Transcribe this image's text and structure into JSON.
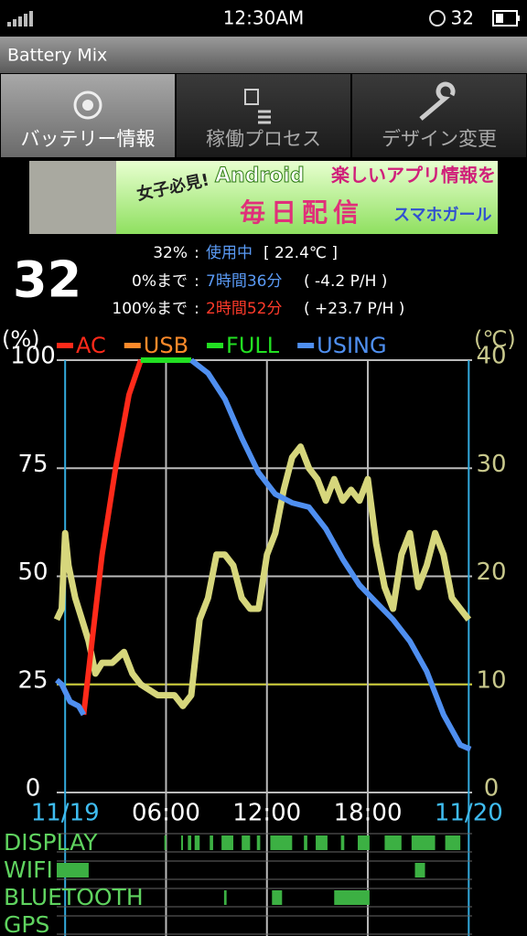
{
  "status_bar": {
    "time": "12:30AM",
    "battery": "32"
  },
  "app_bar": {
    "title": "Battery Mix"
  },
  "tabs": [
    {
      "label": "バッテリー情報",
      "selected": true
    },
    {
      "label": "稼働プロセス",
      "selected": false
    },
    {
      "label": "デザイン変更",
      "selected": false
    }
  ],
  "banner": {
    "texts": [
      "女子必見!",
      "Android",
      "楽しいアプリ情報を",
      "毎日配信",
      "スマホガール"
    ]
  },
  "summary": {
    "level": "32",
    "separator": ":",
    "state_label": "32%",
    "state": "使用中",
    "temperature": "[ 22.4℃ ]",
    "to_empty": {
      "label": "0%まで",
      "time": "7時間36分",
      "rate": "( -4.2 P/H )"
    },
    "to_full": {
      "label": "100%まで",
      "time": "2時間52分",
      "rate": "( +23.7 P/H )"
    }
  },
  "chart_data": {
    "type": "line",
    "y_label": "(%)",
    "y2_label": "(℃)",
    "xlim": [
      -0.5,
      24.2
    ],
    "xticks": [
      {
        "value": 0,
        "label": "11/19"
      },
      {
        "value": 6,
        "label": "06:00"
      },
      {
        "value": 12,
        "label": "12:00"
      },
      {
        "value": 18,
        "label": "18:00"
      },
      {
        "value": 24,
        "label": "11/20"
      }
    ],
    "ylim": [
      0,
      100
    ],
    "yticks": [
      0,
      25,
      50,
      75,
      100
    ],
    "y2lim": [
      0,
      40
    ],
    "y2ticks": [
      0,
      10,
      20,
      30,
      40
    ],
    "grid": true,
    "alert_line": 25,
    "alert_color": "#c8c832",
    "series": [
      {
        "name": "AC",
        "color": "#ff2a1a",
        "x": [
          1.1,
          1.6,
          2.2,
          3.0,
          3.8,
          4.5
        ],
        "values": [
          18,
          35,
          55,
          75,
          92,
          100
        ]
      },
      {
        "name": "USB",
        "color": "#ff8a2a",
        "x": [],
        "values": []
      },
      {
        "name": "FULL",
        "color": "#22e022",
        "x": [
          4.5,
          7.5
        ],
        "values": [
          100,
          100
        ]
      },
      {
        "name": "USING",
        "color": "#4f8ff0",
        "x": [
          -0.5,
          -0.2,
          0.3,
          0.8,
          1.1,
          null,
          7.5,
          8.5,
          9.5,
          10.5,
          11.5,
          12.5,
          13.5,
          14.5,
          15.5,
          16.5,
          17.5,
          18.5,
          19.5,
          20.5,
          21.5,
          22.5,
          23.5,
          24.1
        ],
        "values": [
          26,
          25,
          21,
          20,
          18,
          null,
          100,
          97,
          91,
          82,
          74,
          69,
          67,
          66,
          61,
          54,
          48,
          44,
          40,
          35,
          28,
          18,
          11,
          10
        ]
      },
      {
        "color": "#d6d67c",
        "axis": "y2",
        "x": [
          -0.5,
          -0.2,
          0,
          0.2,
          0.6,
          1.0,
          1.4,
          1.8,
          2.2,
          2.8,
          3.5,
          4.0,
          4.5,
          5.5,
          6.5,
          7.0,
          7.5,
          8.0,
          8.5,
          9.0,
          9.5,
          10.0,
          10.5,
          11.0,
          11.5,
          12.0,
          12.5,
          13.0,
          13.5,
          14.0,
          14.5,
          15.0,
          15.5,
          16.0,
          16.5,
          17.0,
          17.5,
          18.0,
          18.5,
          19.0,
          19.5,
          20.0,
          20.5,
          21.0,
          21.5,
          22.0,
          22.5,
          23.0,
          23.5,
          24.0
        ],
        "values": [
          16,
          17,
          24,
          21,
          18,
          16,
          14,
          11,
          12,
          12,
          13,
          11,
          10,
          9,
          9,
          8,
          9,
          16,
          18,
          22,
          22,
          21,
          18,
          17,
          17,
          22,
          24,
          28,
          31,
          32,
          30,
          29,
          27,
          29,
          27,
          28,
          27,
          29,
          23,
          19,
          17,
          22,
          24,
          19,
          21,
          24,
          22,
          18,
          17,
          16
        ]
      }
    ],
    "activity_color": "#3cb043",
    "activity": [
      {
        "name": "DISPLAY",
        "intervals": [
          [
            5.9,
            6.0
          ],
          [
            6.9,
            7.0
          ],
          [
            7.3,
            7.5
          ],
          [
            7.7,
            8.0
          ],
          [
            8.6,
            8.8
          ],
          [
            9.3,
            10.0
          ],
          [
            10.5,
            11.0
          ],
          [
            11.4,
            11.6
          ],
          [
            12.2,
            13.5
          ],
          [
            14.2,
            14.4
          ],
          [
            14.9,
            15.6
          ],
          [
            16.4,
            16.6
          ],
          [
            17.4,
            18.1
          ],
          [
            19.0,
            20.0
          ],
          [
            20.6,
            22.0
          ],
          [
            22.6,
            23.5
          ]
        ]
      },
      {
        "name": "WIFI",
        "intervals": [
          [
            -0.5,
            1.4
          ],
          [
            20.8,
            21.4
          ]
        ]
      },
      {
        "name": "BLUETOOTH",
        "intervals": [
          [
            9.45,
            9.6
          ],
          [
            12.3,
            12.9
          ],
          [
            16.0,
            18.1
          ]
        ]
      },
      {
        "name": "GPS",
        "intervals": []
      }
    ]
  }
}
